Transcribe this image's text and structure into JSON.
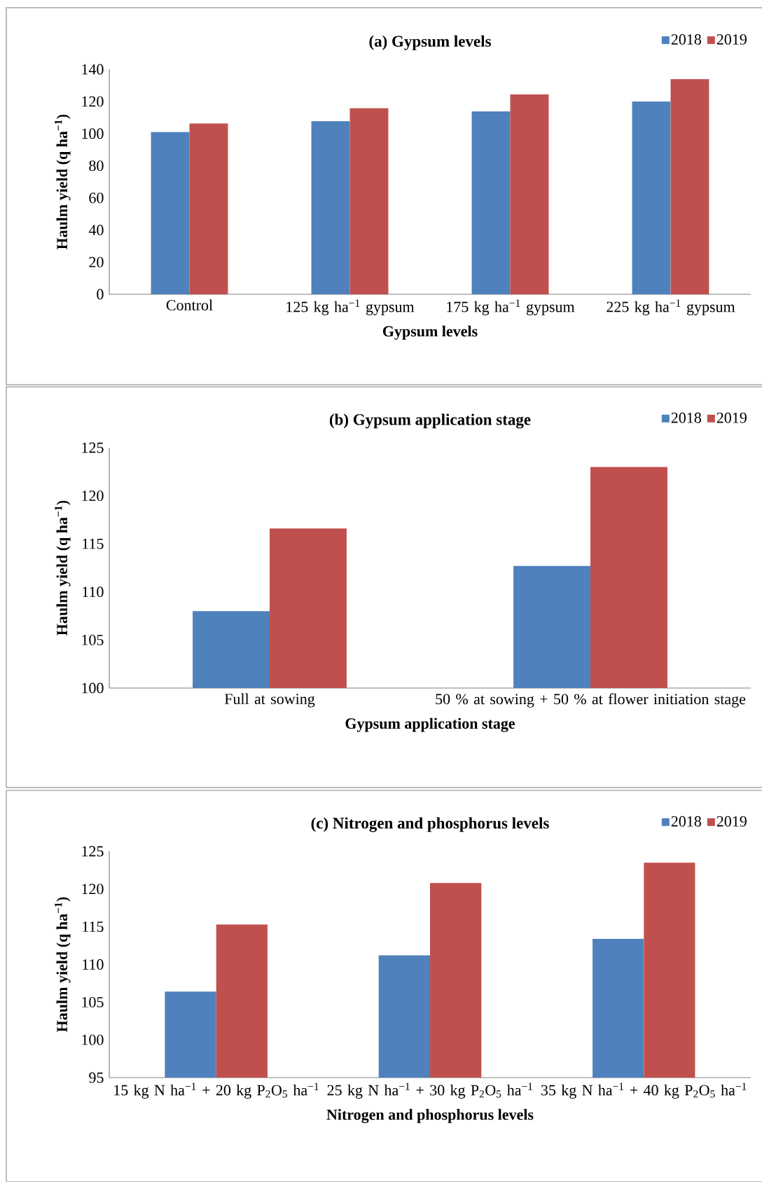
{
  "chart_data": [
    {
      "type": "bar",
      "title": "(a) Gypsum levels",
      "xlabel": "Gypsum levels",
      "ylabel": "Haulm yield (q ha$^{−1}$)",
      "categories": [
        "Control",
        "125 kg ha$^{−1}$ gypsum",
        "175 kg ha$^{−1}$ gypsum",
        "225 kg ha$^{−1}$ gypsum"
      ],
      "series": [
        {
          "name": "2018",
          "color": "#4f81bd",
          "values": [
            101.0,
            107.7,
            113.8,
            120.0
          ]
        },
        {
          "name": "2019",
          "color": "#c0504d",
          "values": [
            106.3,
            115.8,
            124.4,
            133.9
          ]
        }
      ],
      "ylim": [
        0,
        140
      ],
      "yticks": [
        0,
        20,
        40,
        60,
        80,
        100,
        120,
        140
      ],
      "legend": "top right"
    },
    {
      "type": "bar",
      "title": "(b) Gypsum application stage",
      "xlabel": "Gypsum application stage",
      "ylabel": "Haulm yield (q ha$^{−1}$)",
      "categories": [
        "Full at sowing",
        "50 % at sowing + 50 % at flower initiation stage"
      ],
      "series": [
        {
          "name": "2018",
          "color": "#4f81bd",
          "values": [
            108.0,
            112.7
          ]
        },
        {
          "name": "2019",
          "color": "#c0504d",
          "values": [
            116.6,
            123.0
          ]
        }
      ],
      "ylim": [
        100,
        125
      ],
      "yticks": [
        100,
        105,
        110,
        115,
        120,
        125
      ],
      "legend": "top right"
    },
    {
      "type": "bar",
      "title": "(c) Nitrogen and phosphorus levels",
      "xlabel": "Nitrogen and phosphorus levels",
      "ylabel": "Haulm yield (q ha$^{−1}$)",
      "categories": [
        "15 kg N ha$^{−1}$ + 20 kg P$_{2}$O$_{5}$ ha$^{−1}$",
        "25 kg N ha$^{−1}$ + 30 kg P$_{2}$O$_{5}$ ha$^{−1}$",
        "35 kg N ha$^{−1}$ + 40 kg P$_{2}$O$_{5}$ ha$^{−1}$"
      ],
      "series": [
        {
          "name": "2018",
          "color": "#4f81bd",
          "values": [
            106.4,
            111.2,
            113.4
          ]
        },
        {
          "name": "2019",
          "color": "#c0504d",
          "values": [
            115.3,
            120.8,
            123.5
          ]
        }
      ],
      "ylim": [
        95,
        125
      ],
      "yticks": [
        95,
        100,
        105,
        110,
        115,
        120,
        125
      ],
      "legend": "top right"
    }
  ]
}
